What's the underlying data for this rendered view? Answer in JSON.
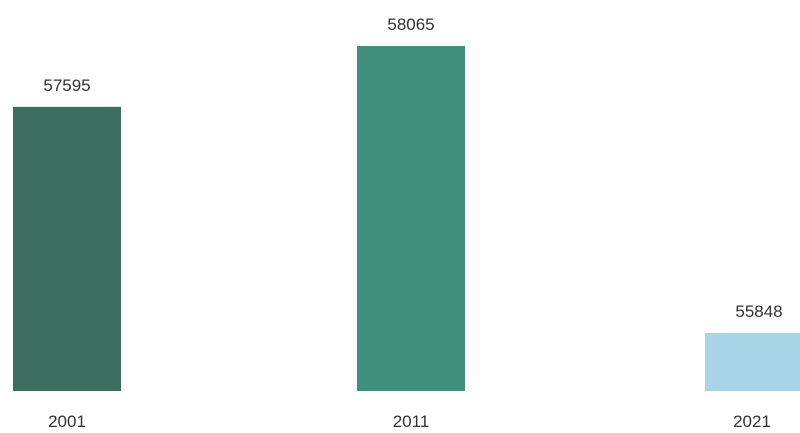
{
  "chart_data": {
    "type": "bar",
    "categories": [
      "2001",
      "2011",
      "2021"
    ],
    "values": [
      57595,
      58065,
      55848
    ],
    "value_labels": [
      "57595",
      "58065",
      "55848"
    ],
    "title": "",
    "xlabel": "",
    "ylabel": "",
    "ylim": [
      55400,
      58065
    ],
    "grid": false,
    "legend": "none",
    "colors": [
      "#3d6f60",
      "#3f8f7c",
      "#a9d3e6"
    ]
  }
}
